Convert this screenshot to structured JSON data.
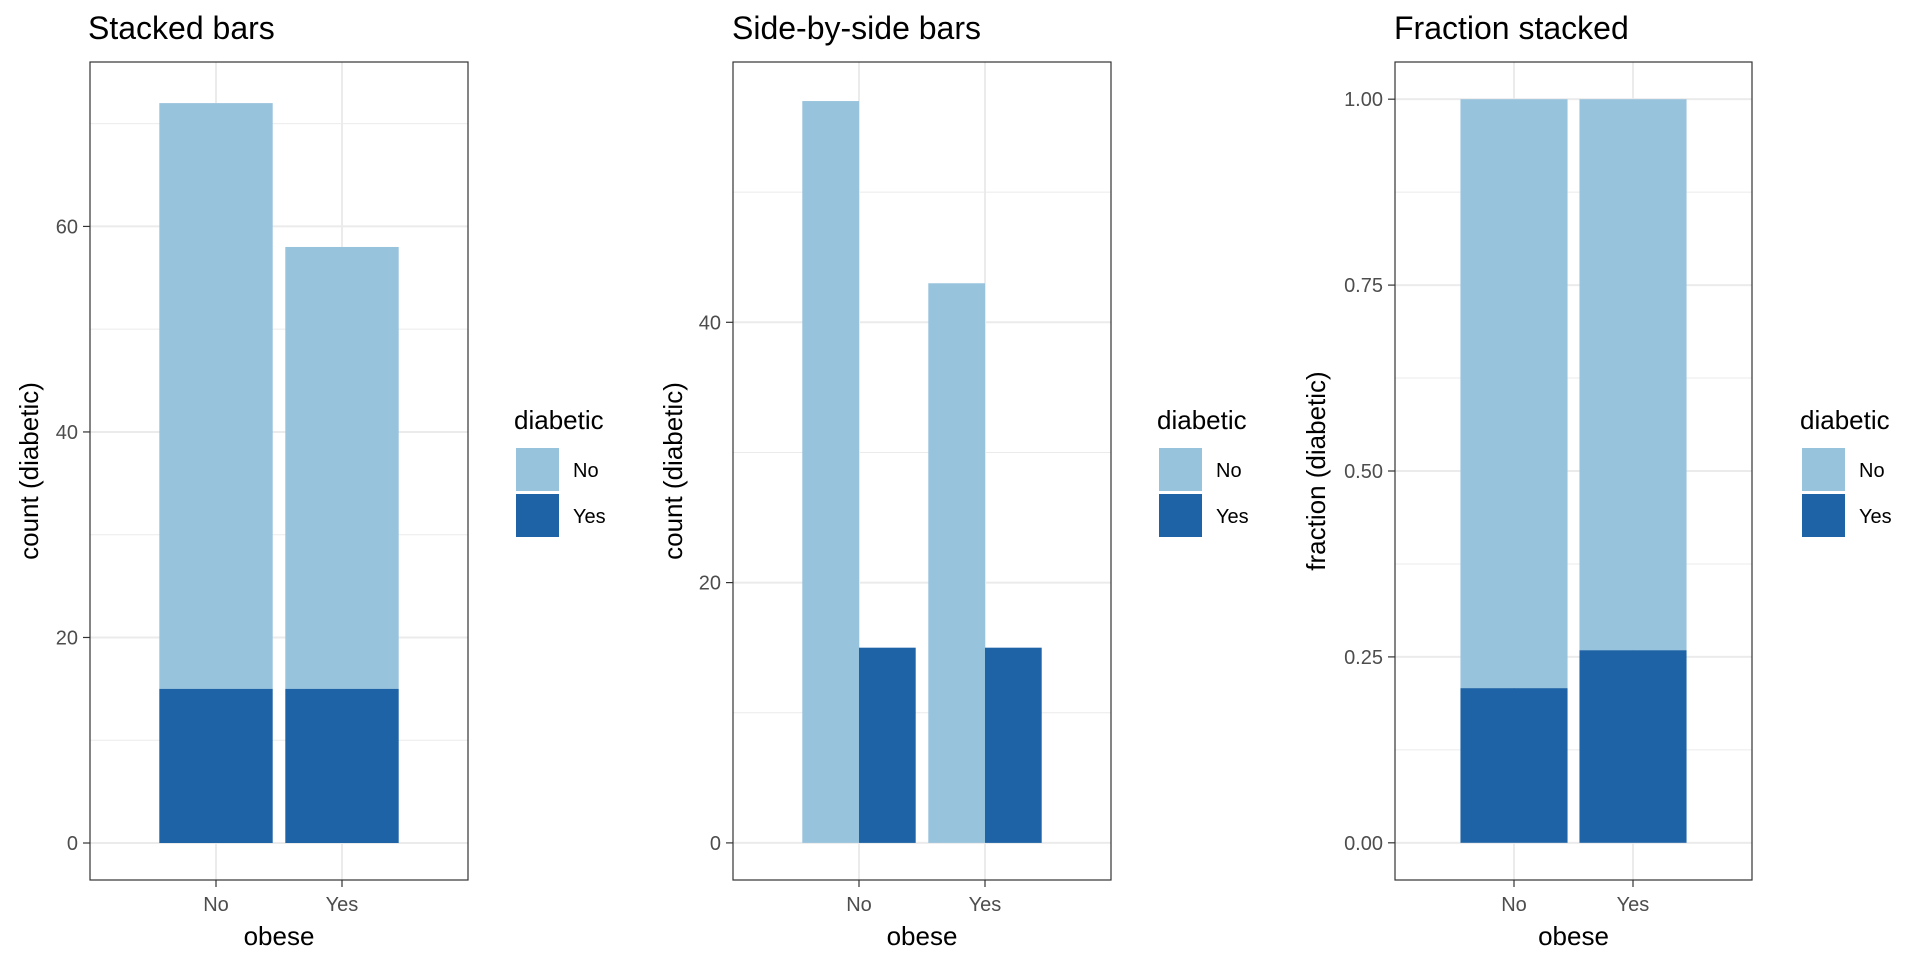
{
  "chart_data": [
    {
      "type": "bar",
      "mode": "stacked",
      "title": "Stacked bars",
      "xlabel": "obese",
      "ylabel": "count (diabetic)",
      "categories": [
        "No",
        "Yes"
      ],
      "ylim": [
        -3.6,
        76
      ],
      "yticks": [
        0,
        20,
        40,
        60
      ],
      "ytick_labels": [
        "0",
        "20",
        "40",
        "60"
      ],
      "series": [
        {
          "name": "No",
          "values": [
            57,
            43
          ]
        },
        {
          "name": "Yes",
          "values": [
            15,
            15
          ]
        }
      ],
      "legend": {
        "title": "diabetic",
        "placement": "right"
      },
      "grid": true
    },
    {
      "type": "bar",
      "mode": "dodge",
      "title": "Side-by-side bars",
      "xlabel": "obese",
      "ylabel": "count (diabetic)",
      "categories": [
        "No",
        "Yes"
      ],
      "ylim": [
        -2.85,
        60
      ],
      "yticks": [
        0,
        20,
        40
      ],
      "ytick_labels": [
        "0",
        "20",
        "40"
      ],
      "series": [
        {
          "name": "No",
          "values": [
            57,
            43
          ]
        },
        {
          "name": "Yes",
          "values": [
            15,
            15
          ]
        }
      ],
      "legend": {
        "title": "diabetic",
        "placement": "right"
      },
      "grid": true
    },
    {
      "type": "bar",
      "mode": "fill",
      "title": "Fraction stacked",
      "xlabel": "obese",
      "ylabel": "fraction (diabetic)",
      "categories": [
        "No",
        "Yes"
      ],
      "ylim": [
        -0.05,
        1.05
      ],
      "yticks": [
        0,
        0.25,
        0.5,
        0.75,
        1
      ],
      "ytick_labels": [
        "0.00",
        "0.25",
        "0.50",
        "0.75",
        "1.00"
      ],
      "series": [
        {
          "name": "No",
          "values": [
            0.792,
            0.741
          ]
        },
        {
          "name": "Yes",
          "values": [
            0.208,
            0.259
          ]
        }
      ],
      "legend": {
        "title": "diabetic",
        "placement": "right"
      },
      "grid": true
    }
  ],
  "colors": {
    "No": "#98c3dc",
    "Yes": "#1e63a5"
  }
}
